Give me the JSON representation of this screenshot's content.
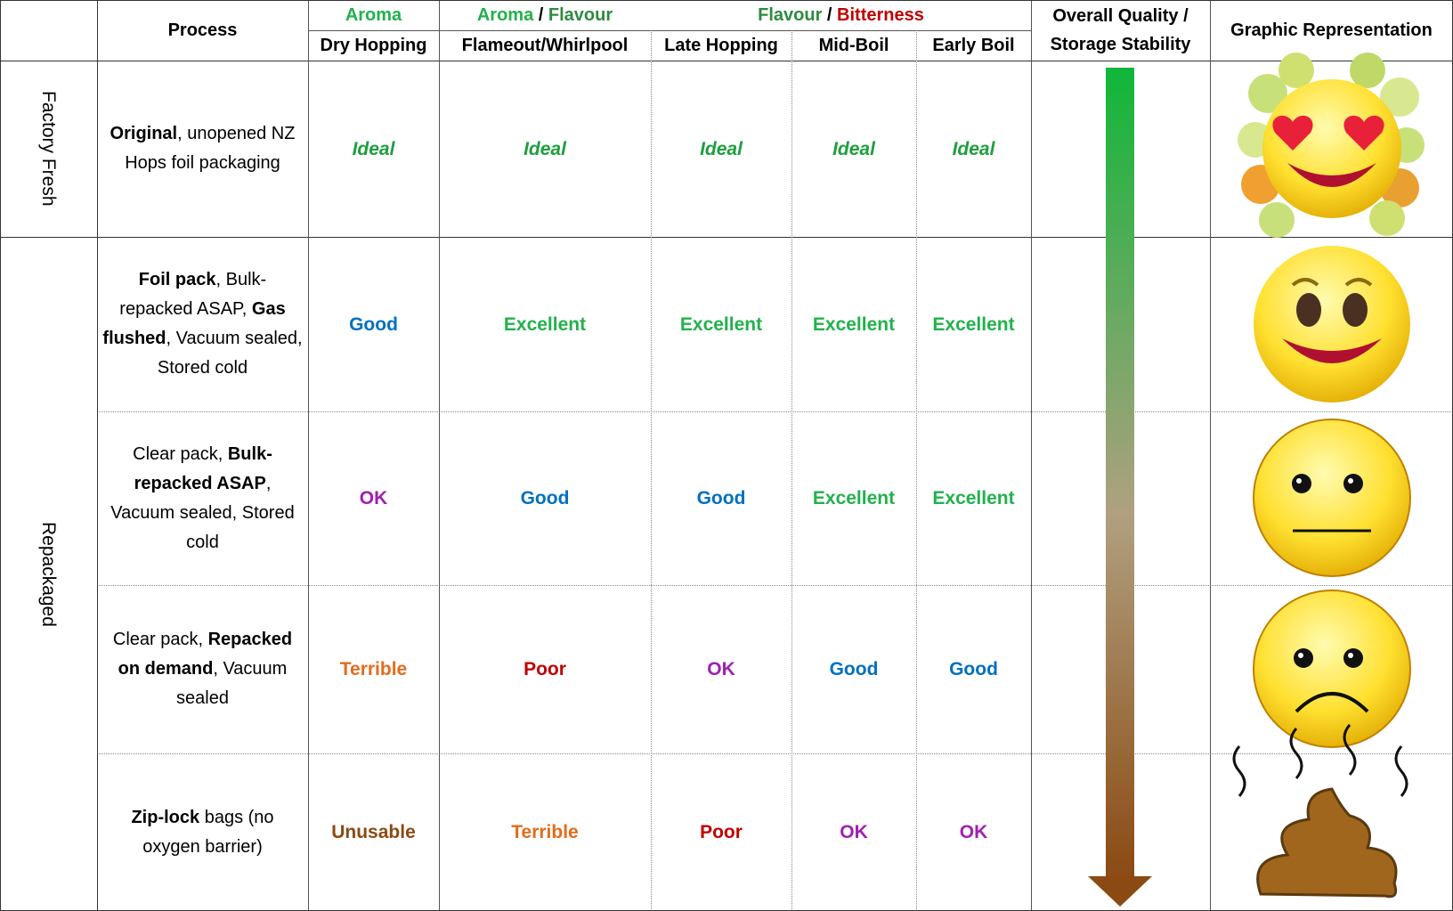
{
  "header": {
    "process": "Process",
    "groups": [
      [
        {
          "text": "Aroma",
          "color": "#22b14c"
        }
      ],
      [
        {
          "text": "Aroma",
          "color": "#22b14c"
        },
        {
          "text": " / ",
          "color": "#000000"
        },
        {
          "text": "Flavour",
          "color": "#2e8b3e"
        }
      ],
      [
        {
          "text": "Flavour",
          "color": "#2e8b3e"
        },
        {
          "text": " / ",
          "color": "#000000"
        },
        {
          "text": "Bitterness",
          "color": "#c00000"
        }
      ]
    ],
    "columns": [
      "Dry Hopping",
      "Flameout/Whirlpool",
      "Late Hopping",
      "Mid-Boil",
      "Early Boil"
    ],
    "quality": [
      "Overall Quality /",
      "Storage Stability"
    ],
    "graphic": "Graphic Representation"
  },
  "groups": [
    {
      "label": "Factory Fresh",
      "rows": [
        {
          "process": [
            {
              "text": "Original",
              "bold": true
            },
            {
              "text": ", unopened NZ Hops foil packaging",
              "bold": false
            }
          ],
          "ratings": [
            {
              "text": "Ideal",
              "color": "#1e9e3e",
              "italic": true
            },
            {
              "text": "Ideal",
              "color": "#1e9e3e",
              "italic": true
            },
            {
              "text": "Ideal",
              "color": "#1e9e3e",
              "italic": true
            },
            {
              "text": "Ideal",
              "color": "#1e9e3e",
              "italic": true
            },
            {
              "text": "Ideal",
              "color": "#1e9e3e",
              "italic": true
            }
          ]
        }
      ]
    },
    {
      "label": "Repackaged",
      "rows": [
        {
          "process": [
            {
              "text": "Foil pack",
              "bold": true
            },
            {
              "text": ", Bulk-repacked ASAP, ",
              "bold": false
            },
            {
              "text": "Gas flushed",
              "bold": true
            },
            {
              "text": ", Vacuum sealed, Stored cold",
              "bold": false
            }
          ],
          "ratings": [
            {
              "text": "Good",
              "color": "#0070c0",
              "italic": false
            },
            {
              "text": "Excellent",
              "color": "#22b14c",
              "italic": false
            },
            {
              "text": "Excellent",
              "color": "#22b14c",
              "italic": false
            },
            {
              "text": "Excellent",
              "color": "#22b14c",
              "italic": false
            },
            {
              "text": "Excellent",
              "color": "#22b14c",
              "italic": false
            }
          ]
        },
        {
          "process": [
            {
              "text": "Clear pack, ",
              "bold": false
            },
            {
              "text": "Bulk-repacked ASAP",
              "bold": true
            },
            {
              "text": ", Vacuum sealed, Stored cold",
              "bold": false
            }
          ],
          "ratings": [
            {
              "text": "OK",
              "color": "#a020b0",
              "italic": false
            },
            {
              "text": "Good",
              "color": "#0070c0",
              "italic": false
            },
            {
              "text": "Good",
              "color": "#0070c0",
              "italic": false
            },
            {
              "text": "Excellent",
              "color": "#22b14c",
              "italic": false
            },
            {
              "text": "Excellent",
              "color": "#22b14c",
              "italic": false
            }
          ]
        },
        {
          "process": [
            {
              "text": "Clear pack, ",
              "bold": false
            },
            {
              "text": "Repacked on demand",
              "bold": true
            },
            {
              "text": ", Vacuum sealed",
              "bold": false
            }
          ],
          "ratings": [
            {
              "text": "Terrible",
              "color": "#e36c1a",
              "italic": false
            },
            {
              "text": "Poor",
              "color": "#c00000",
              "italic": false
            },
            {
              "text": "OK",
              "color": "#a020b0",
              "italic": false
            },
            {
              "text": "Good",
              "color": "#0070c0",
              "italic": false
            },
            {
              "text": "Good",
              "color": "#0070c0",
              "italic": false
            }
          ]
        },
        {
          "process": [
            {
              "text": "Zip-lock",
              "bold": true
            },
            {
              "text": " bags (no oxygen barrier)",
              "bold": false
            }
          ],
          "ratings": [
            {
              "text": "Unusable",
              "color": "#8b4a12",
              "italic": false
            },
            {
              "text": "Terrible",
              "color": "#e36c1a",
              "italic": false
            },
            {
              "text": "Poor",
              "color": "#c00000",
              "italic": false
            },
            {
              "text": "OK",
              "color": "#a020b0",
              "italic": false
            },
            {
              "text": "OK",
              "color": "#a020b0",
              "italic": false
            }
          ]
        }
      ]
    }
  ]
}
